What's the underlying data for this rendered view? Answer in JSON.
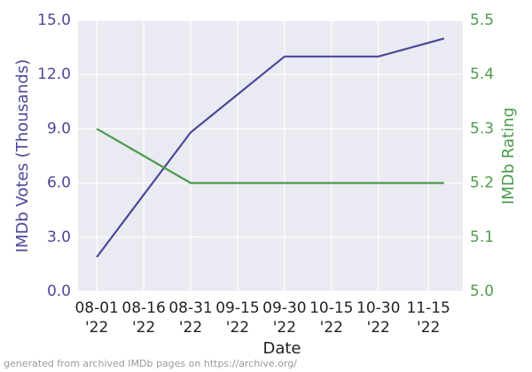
{
  "chart_data": {
    "type": "line",
    "x_label": "Date",
    "y_label": "IMDb Votes (Thousands)",
    "y2_label": "IMDb Rating",
    "note": "generated from archived IMDb pages on https://archive.org/",
    "x": [
      "2022-08-01",
      "2022-08-31",
      "2022-09-30",
      "2022-10-30",
      "2022-11-20"
    ],
    "xlim": [
      "2022-07-26",
      "2022-11-26"
    ],
    "xticks": [
      {
        "value": "2022-08-01",
        "label": "08-01 '22"
      },
      {
        "value": "2022-08-16",
        "label": "08-16 '22"
      },
      {
        "value": "2022-08-31",
        "label": "08-31 '22"
      },
      {
        "value": "2022-09-15",
        "label": "09-15 '22"
      },
      {
        "value": "2022-09-30",
        "label": "09-30 '22"
      },
      {
        "value": "2022-10-15",
        "label": "10-15 '22"
      },
      {
        "value": "2022-10-30",
        "label": "10-30 '22"
      },
      {
        "value": "2022-11-15",
        "label": "11-15 '22"
      }
    ],
    "ylim": [
      0,
      15
    ],
    "yticks": [
      {
        "value": 0,
        "label": "0.0"
      },
      {
        "value": 3,
        "label": "3.0"
      },
      {
        "value": 6,
        "label": "6.0"
      },
      {
        "value": 9,
        "label": "9.0"
      },
      {
        "value": 12,
        "label": "12.0"
      },
      {
        "value": 15,
        "label": "15.0"
      }
    ],
    "y2lim": [
      5.0,
      5.5
    ],
    "y2ticks": [
      {
        "value": 5.0,
        "label": "5.0"
      },
      {
        "value": 5.1,
        "label": "5.1"
      },
      {
        "value": 5.2,
        "label": "5.2"
      },
      {
        "value": 5.3,
        "label": "5.3"
      },
      {
        "value": 5.4,
        "label": "5.4"
      },
      {
        "value": 5.5,
        "label": "5.5"
      }
    ],
    "grid": true,
    "series": [
      {
        "color": "#4b4899",
        "values": [
          1.9,
          8.8,
          13.0,
          13.0,
          14.0
        ]
      },
      {
        "color": "#4c9b4c",
        "axis": "y2",
        "values": [
          5.3,
          5.2,
          5.2,
          5.2,
          5.2
        ]
      }
    ]
  }
}
